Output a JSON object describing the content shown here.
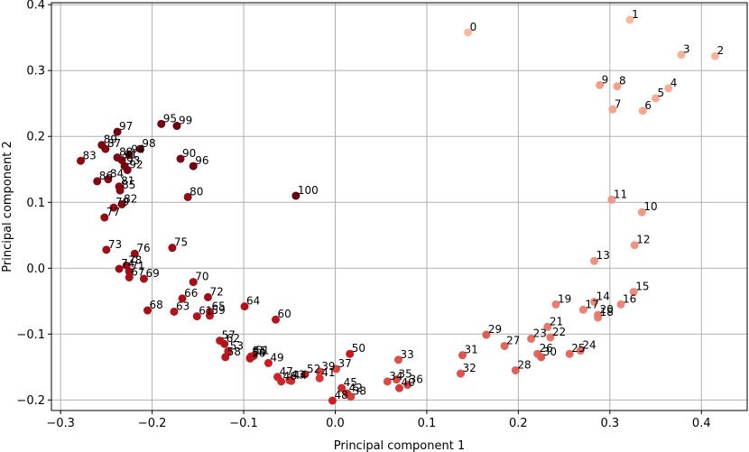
{
  "chart_data": {
    "type": "scatter",
    "title": "",
    "xlabel": "Principal component 1",
    "ylabel": "Principal component 2",
    "xlim": [
      -0.31,
      0.45
    ],
    "ylim": [
      -0.216,
      0.403
    ],
    "grid": true,
    "xticks": [
      -0.3,
      -0.2,
      -0.1,
      0.0,
      0.1,
      0.2,
      0.3,
      0.4
    ],
    "xtick_labels": [
      "−0.3",
      "−0.2",
      "−0.1",
      "0.0",
      "0.1",
      "0.2",
      "0.3",
      "0.4"
    ],
    "yticks": [
      -0.2,
      -0.1,
      0.0,
      0.1,
      0.2,
      0.3,
      0.4
    ],
    "ytick_labels": [
      "−0.2",
      "−0.1",
      "0.0",
      "0.1",
      "0.2",
      "0.3",
      "0.4"
    ],
    "color_scale": {
      "start": "#fcbba1",
      "mid": "#cb181d",
      "end": "#67000d"
    },
    "points": [
      {
        "label": "0",
        "x": 0.145,
        "y": 0.358
      },
      {
        "label": "1",
        "x": 0.322,
        "y": 0.377
      },
      {
        "label": "2",
        "x": 0.415,
        "y": 0.322
      },
      {
        "label": "3",
        "x": 0.378,
        "y": 0.324
      },
      {
        "label": "4",
        "x": 0.364,
        "y": 0.273
      },
      {
        "label": "5",
        "x": 0.35,
        "y": 0.258
      },
      {
        "label": "6",
        "x": 0.336,
        "y": 0.239
      },
      {
        "label": "7",
        "x": 0.303,
        "y": 0.241
      },
      {
        "label": "8",
        "x": 0.308,
        "y": 0.276
      },
      {
        "label": "9",
        "x": 0.289,
        "y": 0.278
      },
      {
        "label": "10",
        "x": 0.335,
        "y": 0.085
      },
      {
        "label": "11",
        "x": 0.302,
        "y": 0.104
      },
      {
        "label": "12",
        "x": 0.327,
        "y": 0.035
      },
      {
        "label": "13",
        "x": 0.283,
        "y": 0.011
      },
      {
        "label": "14",
        "x": 0.283,
        "y": -0.051
      },
      {
        "label": "15",
        "x": 0.326,
        "y": -0.036
      },
      {
        "label": "16",
        "x": 0.312,
        "y": -0.055
      },
      {
        "label": "17",
        "x": 0.271,
        "y": -0.063
      },
      {
        "label": "18",
        "x": 0.287,
        "y": -0.075
      },
      {
        "label": "19",
        "x": 0.241,
        "y": -0.055
      },
      {
        "label": "20",
        "x": 0.287,
        "y": -0.071
      },
      {
        "label": "21",
        "x": 0.232,
        "y": -0.089
      },
      {
        "label": "22",
        "x": 0.235,
        "y": -0.105
      },
      {
        "label": "23",
        "x": 0.214,
        "y": -0.107
      },
      {
        "label": "24",
        "x": 0.268,
        "y": -0.125
      },
      {
        "label": "25",
        "x": 0.256,
        "y": -0.13
      },
      {
        "label": "26",
        "x": 0.221,
        "y": -0.13
      },
      {
        "label": "27",
        "x": 0.185,
        "y": -0.118
      },
      {
        "label": "28",
        "x": 0.197,
        "y": -0.155
      },
      {
        "label": "29",
        "x": 0.165,
        "y": -0.101
      },
      {
        "label": "30",
        "x": 0.225,
        "y": -0.135
      },
      {
        "label": "31",
        "x": 0.139,
        "y": -0.132
      },
      {
        "label": "32",
        "x": 0.137,
        "y": -0.16
      },
      {
        "label": "33",
        "x": 0.069,
        "y": -0.139
      },
      {
        "label": "34",
        "x": 0.057,
        "y": -0.172
      },
      {
        "label": "35",
        "x": 0.067,
        "y": -0.169
      },
      {
        "label": "36",
        "x": 0.079,
        "y": -0.177
      },
      {
        "label": "37",
        "x": 0.001,
        "y": -0.153
      },
      {
        "label": "38",
        "x": 0.017,
        "y": -0.195
      },
      {
        "label": "39",
        "x": -0.017,
        "y": -0.157
      },
      {
        "label": "40",
        "x": 0.07,
        "y": -0.182
      },
      {
        "label": "41",
        "x": -0.017,
        "y": -0.167
      },
      {
        "label": "42",
        "x": 0.013,
        "y": -0.19
      },
      {
        "label": "43",
        "x": -0.05,
        "y": -0.17
      },
      {
        "label": "44",
        "x": -0.048,
        "y": -0.171
      },
      {
        "label": "45",
        "x": 0.007,
        "y": -0.182
      },
      {
        "label": "46",
        "x": -0.059,
        "y": -0.172
      },
      {
        "label": "47",
        "x": -0.063,
        "y": -0.165
      },
      {
        "label": "48",
        "x": -0.003,
        "y": -0.201
      },
      {
        "label": "49",
        "x": -0.073,
        "y": -0.144
      },
      {
        "label": "50",
        "x": 0.016,
        "y": -0.13
      },
      {
        "label": "51",
        "x": -0.089,
        "y": -0.133
      },
      {
        "label": "52",
        "x": -0.033,
        "y": -0.161
      },
      {
        "label": "53",
        "x": -0.117,
        "y": -0.126
      },
      {
        "label": "54",
        "x": -0.093,
        "y": -0.136
      },
      {
        "label": "55",
        "x": -0.092,
        "y": -0.134
      },
      {
        "label": "56",
        "x": -0.093,
        "y": -0.137
      },
      {
        "label": "57",
        "x": -0.126,
        "y": -0.11
      },
      {
        "label": "58",
        "x": -0.12,
        "y": -0.135
      },
      {
        "label": "59",
        "x": -0.137,
        "y": -0.072
      },
      {
        "label": "60",
        "x": -0.065,
        "y": -0.078
      },
      {
        "label": "61",
        "x": -0.151,
        "y": -0.073
      },
      {
        "label": "62",
        "x": -0.121,
        "y": -0.115
      },
      {
        "label": "63",
        "x": -0.176,
        "y": -0.066
      },
      {
        "label": "64",
        "x": -0.099,
        "y": -0.058
      },
      {
        "label": "65",
        "x": -0.137,
        "y": -0.066
      },
      {
        "label": "66",
        "x": -0.167,
        "y": -0.046
      },
      {
        "label": "67",
        "x": -0.225,
        "y": -0.014
      },
      {
        "label": "68",
        "x": -0.205,
        "y": -0.064
      },
      {
        "label": "69",
        "x": -0.209,
        "y": -0.016
      },
      {
        "label": "70",
        "x": -0.155,
        "y": -0.021
      },
      {
        "label": "71",
        "x": -0.225,
        "y": -0.005
      },
      {
        "label": "72",
        "x": -0.139,
        "y": -0.044
      },
      {
        "label": "73",
        "x": -0.25,
        "y": 0.028
      },
      {
        "label": "74",
        "x": -0.236,
        "y": -0.001
      },
      {
        "label": "75",
        "x": -0.178,
        "y": 0.031
      },
      {
        "label": "76",
        "x": -0.219,
        "y": 0.022
      },
      {
        "label": "77",
        "x": -0.252,
        "y": 0.077
      },
      {
        "label": "78",
        "x": -0.228,
        "y": 0.004
      },
      {
        "label": "79",
        "x": -0.242,
        "y": 0.092
      },
      {
        "label": "80",
        "x": -0.161,
        "y": 0.108
      },
      {
        "label": "81",
        "x": -0.236,
        "y": 0.124
      },
      {
        "label": "82",
        "x": -0.233,
        "y": 0.097
      },
      {
        "label": "83",
        "x": -0.278,
        "y": 0.163
      },
      {
        "label": "84",
        "x": -0.248,
        "y": 0.135
      },
      {
        "label": "85",
        "x": -0.235,
        "y": 0.118
      },
      {
        "label": "86",
        "x": -0.26,
        "y": 0.132
      },
      {
        "label": "87",
        "x": -0.251,
        "y": 0.181
      },
      {
        "label": "88",
        "x": -0.238,
        "y": 0.168
      },
      {
        "label": "89",
        "x": -0.255,
        "y": 0.187
      },
      {
        "label": "90",
        "x": -0.169,
        "y": 0.166
      },
      {
        "label": "91",
        "x": -0.233,
        "y": 0.164
      },
      {
        "label": "92",
        "x": -0.227,
        "y": 0.149
      },
      {
        "label": "93",
        "x": -0.23,
        "y": 0.155
      },
      {
        "label": "94",
        "x": -0.225,
        "y": 0.172
      },
      {
        "label": "95",
        "x": -0.19,
        "y": 0.219
      },
      {
        "label": "96",
        "x": -0.155,
        "y": 0.155
      },
      {
        "label": "97",
        "x": -0.238,
        "y": 0.207
      },
      {
        "label": "98",
        "x": -0.213,
        "y": 0.181
      },
      {
        "label": "99",
        "x": -0.173,
        "y": 0.216
      },
      {
        "label": "100",
        "x": -0.043,
        "y": 0.11
      }
    ]
  }
}
